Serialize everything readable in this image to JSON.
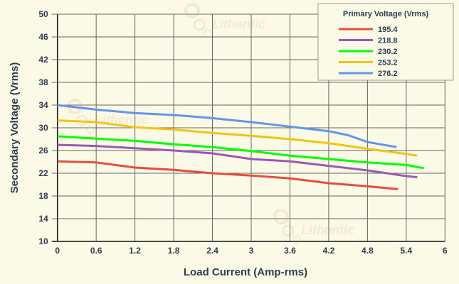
{
  "chart_data": {
    "type": "line",
    "title": "",
    "xlabel": "Load Current (Amp-rms)",
    "ylabel": "Secondary Voltage (Vrms)",
    "xlim": [
      0,
      6
    ],
    "ylim": [
      10,
      50
    ],
    "xticks": [
      "0",
      "0.6",
      "1.2",
      "1.8",
      "2.4",
      "3",
      "3.6",
      "4.2",
      "4.8",
      "5.4",
      "6"
    ],
    "yticks": [
      "10",
      "14",
      "18",
      "22",
      "26",
      "30",
      "34",
      "38",
      "42",
      "46",
      "50"
    ],
    "grid": true,
    "legend": {
      "title": "Primary Voltage (Vrms)",
      "placement": "top-right"
    },
    "watermark": "Lithentic",
    "series": [
      {
        "name": "195.4",
        "color": "#e84c3d",
        "points": [
          [
            0,
            24.1
          ],
          [
            0.6,
            23.9
          ],
          [
            1.2,
            23.0
          ],
          [
            1.8,
            22.6
          ],
          [
            2.4,
            22.0
          ],
          [
            3,
            21.6
          ],
          [
            3.6,
            21.1
          ],
          [
            4.2,
            20.25
          ],
          [
            4.8,
            19.7
          ],
          [
            5.27,
            19.2
          ]
        ]
      },
      {
        "name": "218.8",
        "color": "#9b59b6",
        "points": [
          [
            0,
            27.0
          ],
          [
            0.6,
            26.8
          ],
          [
            1.2,
            26.4
          ],
          [
            1.8,
            26.0
          ],
          [
            2.4,
            25.5
          ],
          [
            3,
            24.5
          ],
          [
            3.6,
            24.1
          ],
          [
            4.2,
            23.3
          ],
          [
            4.8,
            22.5
          ],
          [
            5.4,
            21.5
          ],
          [
            5.57,
            21.3
          ]
        ]
      },
      {
        "name": "230.2",
        "color": "#00ff00",
        "points": [
          [
            0,
            28.5
          ],
          [
            0.6,
            28.1
          ],
          [
            1.2,
            27.7
          ],
          [
            1.8,
            27.1
          ],
          [
            2.4,
            26.6
          ],
          [
            3,
            25.9
          ],
          [
            3.6,
            25.1
          ],
          [
            4.2,
            24.5
          ],
          [
            4.8,
            23.9
          ],
          [
            5.4,
            23.45
          ],
          [
            5.67,
            22.9
          ]
        ]
      },
      {
        "name": "253.2",
        "color": "#f1c40f",
        "points": [
          [
            0,
            31.3
          ],
          [
            0.6,
            31.0
          ],
          [
            1.2,
            30.1
          ],
          [
            1.8,
            29.7
          ],
          [
            2.4,
            29.1
          ],
          [
            3,
            28.6
          ],
          [
            3.6,
            28.0
          ],
          [
            4.2,
            27.3
          ],
          [
            4.8,
            26.3
          ],
          [
            5.4,
            25.4
          ],
          [
            5.57,
            25.1
          ]
        ]
      },
      {
        "name": "276.2",
        "color": "#6495ed",
        "points": [
          [
            0,
            34.0
          ],
          [
            0.6,
            33.2
          ],
          [
            1.2,
            32.6
          ],
          [
            1.8,
            32.25
          ],
          [
            2.4,
            31.7
          ],
          [
            3,
            31.0
          ],
          [
            3.6,
            30.2
          ],
          [
            4.2,
            29.4
          ],
          [
            4.5,
            28.7
          ],
          [
            4.8,
            27.5
          ],
          [
            5.25,
            26.6
          ]
        ]
      }
    ]
  }
}
